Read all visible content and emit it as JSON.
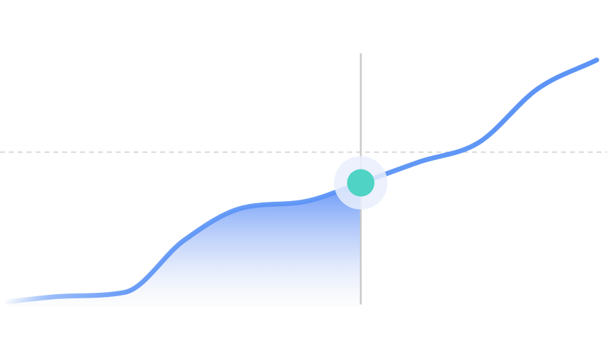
{
  "chart_data": {
    "type": "line",
    "title": "",
    "xlabel": "",
    "ylabel": "",
    "x": [
      0,
      1,
      2,
      3,
      4,
      5,
      6,
      7,
      8,
      9,
      10
    ],
    "series": [
      {
        "values": [
          0.7,
          1.0,
          1.2,
          3.9,
          5.6,
          5.9,
          6.9,
          8.0,
          9.0,
          11.8,
          13.3
        ],
        "color": "#5b93f6"
      }
    ],
    "highlight": {
      "index": 6,
      "color": "#4fd3c4"
    },
    "reference_line": {
      "value": 8.5
    },
    "area_fill_until_index": 6,
    "xlim": [
      0,
      10
    ],
    "ylim": [
      -1,
      15
    ],
    "grid": false,
    "legend": "none"
  },
  "colors": {
    "line": "#5b93f6",
    "marker": "#4fd3c4",
    "marker_halo": "#e9effd",
    "crosshair": "#c8c8c8",
    "reference": "#cccccc"
  }
}
